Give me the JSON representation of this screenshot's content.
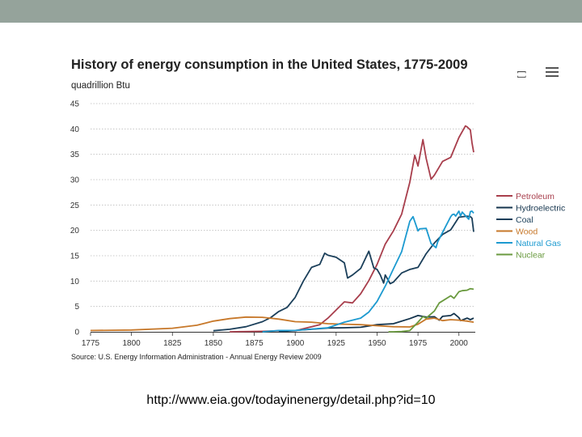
{
  "chart_data": {
    "type": "line",
    "title": "History of energy consumption in the United States, 1775-2009",
    "ylabel": "quadrillion Btu",
    "xlabel": "",
    "xlim": [
      1775,
      2010
    ],
    "ylim": [
      0,
      45
    ],
    "x_ticks": [
      "1775",
      "1800",
      "1825",
      "1850",
      "1875",
      "1900",
      "1925",
      "1950",
      "1975",
      "2000"
    ],
    "y_ticks": [
      "0",
      "5",
      "10",
      "15",
      "20",
      "25",
      "30",
      "35",
      "40",
      "45"
    ],
    "grid": "horizontal dotted",
    "legend_position": "right",
    "source": "Source: U.S. Energy Information Administration - Annual Energy Review 2009",
    "series": [
      {
        "name": "Petroleum",
        "color": "#a83e4c",
        "points": [
          [
            1860,
            0
          ],
          [
            1880,
            0.1
          ],
          [
            1890,
            0.2
          ],
          [
            1900,
            0.2
          ],
          [
            1905,
            0.6
          ],
          [
            1910,
            1.0
          ],
          [
            1915,
            1.4
          ],
          [
            1920,
            2.7
          ],
          [
            1925,
            4.3
          ],
          [
            1930,
            5.9
          ],
          [
            1935,
            5.7
          ],
          [
            1940,
            7.5
          ],
          [
            1945,
            10.1
          ],
          [
            1950,
            13.3
          ],
          [
            1955,
            17.3
          ],
          [
            1960,
            19.9
          ],
          [
            1965,
            23.2
          ],
          [
            1970,
            29.5
          ],
          [
            1973,
            34.8
          ],
          [
            1975,
            32.7
          ],
          [
            1978,
            37.9
          ],
          [
            1980,
            34.2
          ],
          [
            1983,
            30.1
          ],
          [
            1985,
            30.9
          ],
          [
            1990,
            33.6
          ],
          [
            1995,
            34.4
          ],
          [
            2000,
            38.3
          ],
          [
            2004,
            40.6
          ],
          [
            2005,
            40.4
          ],
          [
            2007,
            39.8
          ],
          [
            2008,
            37.3
          ],
          [
            2009,
            35.4
          ]
        ]
      },
      {
        "name": "Hydroelectric",
        "color": "#14344d",
        "points": [
          [
            1890,
            0
          ],
          [
            1900,
            0.25
          ],
          [
            1910,
            0.5
          ],
          [
            1920,
            0.75
          ],
          [
            1930,
            0.8
          ],
          [
            1940,
            0.9
          ],
          [
            1950,
            1.4
          ],
          [
            1960,
            1.6
          ],
          [
            1970,
            2.6
          ],
          [
            1975,
            3.2
          ],
          [
            1980,
            2.9
          ],
          [
            1985,
            2.97
          ],
          [
            1988,
            2.3
          ],
          [
            1990,
            3.05
          ],
          [
            1995,
            3.2
          ],
          [
            1997,
            3.6
          ],
          [
            2000,
            2.8
          ],
          [
            2001,
            2.2
          ],
          [
            2005,
            2.7
          ],
          [
            2007,
            2.4
          ],
          [
            2009,
            2.7
          ]
        ]
      },
      {
        "name": "Coal",
        "color": "#1b3f5a",
        "points": [
          [
            1850,
            0.2
          ],
          [
            1860,
            0.5
          ],
          [
            1870,
            1.0
          ],
          [
            1880,
            2.0
          ],
          [
            1885,
            2.8
          ],
          [
            1890,
            4.0
          ],
          [
            1895,
            4.8
          ],
          [
            1900,
            6.8
          ],
          [
            1905,
            10.0
          ],
          [
            1910,
            12.7
          ],
          [
            1915,
            13.3
          ],
          [
            1918,
            15.5
          ],
          [
            1920,
            15.1
          ],
          [
            1925,
            14.7
          ],
          [
            1930,
            13.6
          ],
          [
            1932,
            10.6
          ],
          [
            1935,
            11.2
          ],
          [
            1940,
            12.5
          ],
          [
            1945,
            15.9
          ],
          [
            1948,
            12.6
          ],
          [
            1950,
            12.3
          ],
          [
            1952,
            11.2
          ],
          [
            1954,
            9.6
          ],
          [
            1955,
            11.2
          ],
          [
            1958,
            9.5
          ],
          [
            1960,
            9.8
          ],
          [
            1965,
            11.6
          ],
          [
            1970,
            12.3
          ],
          [
            1975,
            12.7
          ],
          [
            1980,
            15.4
          ],
          [
            1985,
            17.5
          ],
          [
            1990,
            19.2
          ],
          [
            1995,
            20.1
          ],
          [
            2000,
            22.6
          ],
          [
            2005,
            22.8
          ],
          [
            2007,
            22.7
          ],
          [
            2008,
            22.4
          ],
          [
            2009,
            19.7
          ]
        ]
      },
      {
        "name": "Wood",
        "color": "#c7782a",
        "points": [
          [
            1775,
            0.25
          ],
          [
            1800,
            0.35
          ],
          [
            1825,
            0.7
          ],
          [
            1840,
            1.3
          ],
          [
            1850,
            2.1
          ],
          [
            1860,
            2.6
          ],
          [
            1870,
            2.9
          ],
          [
            1880,
            2.85
          ],
          [
            1890,
            2.5
          ],
          [
            1900,
            2.0
          ],
          [
            1910,
            1.9
          ],
          [
            1920,
            1.6
          ],
          [
            1930,
            1.5
          ],
          [
            1940,
            1.4
          ],
          [
            1950,
            1.2
          ],
          [
            1955,
            1.1
          ],
          [
            1960,
            1.0
          ],
          [
            1970,
            0.96
          ],
          [
            1975,
            1.5
          ],
          [
            1980,
            2.5
          ],
          [
            1985,
            2.7
          ],
          [
            1990,
            2.2
          ],
          [
            1995,
            2.4
          ],
          [
            2000,
            2.3
          ],
          [
            2005,
            2.1
          ],
          [
            2009,
            1.9
          ]
        ]
      },
      {
        "name": "Natural Gas",
        "color": "#1c9ad0",
        "points": [
          [
            1880,
            0
          ],
          [
            1890,
            0.25
          ],
          [
            1900,
            0.25
          ],
          [
            1910,
            0.54
          ],
          [
            1920,
            0.8
          ],
          [
            1930,
            1.9
          ],
          [
            1940,
            2.7
          ],
          [
            1945,
            3.9
          ],
          [
            1950,
            6.0
          ],
          [
            1955,
            9.0
          ],
          [
            1960,
            12.4
          ],
          [
            1965,
            15.8
          ],
          [
            1970,
            21.8
          ],
          [
            1972,
            22.7
          ],
          [
            1975,
            19.9
          ],
          [
            1976,
            20.3
          ],
          [
            1980,
            20.4
          ],
          [
            1983,
            17.4
          ],
          [
            1986,
            16.6
          ],
          [
            1987,
            17.7
          ],
          [
            1990,
            19.6
          ],
          [
            1995,
            22.7
          ],
          [
            1996,
            23.1
          ],
          [
            1997,
            23.2
          ],
          [
            1998,
            22.8
          ],
          [
            2000,
            23.8
          ],
          [
            2001,
            22.8
          ],
          [
            2002,
            23.6
          ],
          [
            2004,
            22.9
          ],
          [
            2006,
            22.2
          ],
          [
            2007,
            23.7
          ],
          [
            2008,
            23.8
          ],
          [
            2009,
            23.4
          ]
        ]
      },
      {
        "name": "Nuclear",
        "color": "#6a9a3f",
        "points": [
          [
            1957,
            0
          ],
          [
            1960,
            0
          ],
          [
            1965,
            0.04
          ],
          [
            1970,
            0.24
          ],
          [
            1975,
            1.9
          ],
          [
            1978,
            3.0
          ],
          [
            1980,
            2.7
          ],
          [
            1985,
            4.1
          ],
          [
            1988,
            5.7
          ],
          [
            1990,
            6.1
          ],
          [
            1995,
            7.1
          ],
          [
            1997,
            6.6
          ],
          [
            2000,
            7.9
          ],
          [
            2002,
            8.1
          ],
          [
            2005,
            8.2
          ],
          [
            2007,
            8.5
          ],
          [
            2009,
            8.4
          ]
        ]
      }
    ]
  },
  "footer": {
    "url": "http://www.eia.gov/todayinenergy/detail.php?id=10"
  },
  "icons": {
    "menu": "hamburger-menu-icon",
    "bracket": "bracket-icon"
  }
}
